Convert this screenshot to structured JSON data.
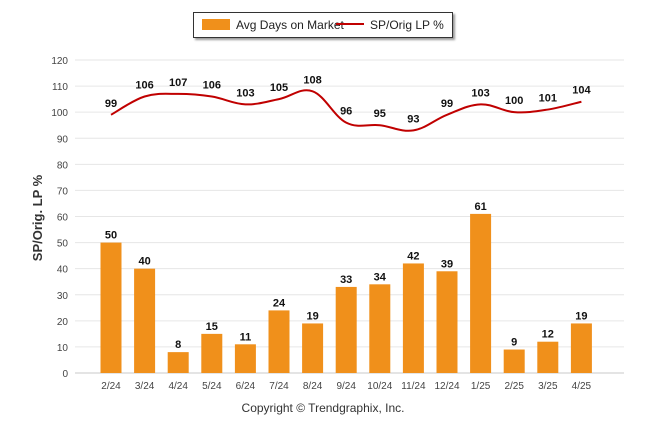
{
  "chart_data": {
    "type": "bar",
    "categories": [
      "2/24",
      "3/24",
      "4/24",
      "5/24",
      "6/24",
      "7/24",
      "8/24",
      "9/24",
      "10/24",
      "11/24",
      "12/24",
      "1/25",
      "2/25",
      "3/25",
      "4/25"
    ],
    "series": [
      {
        "name": "Avg Days on Market",
        "type": "bar",
        "color": "#f0901b",
        "values": [
          50,
          40,
          8,
          15,
          11,
          24,
          19,
          33,
          34,
          42,
          39,
          61,
          9,
          12,
          19
        ]
      },
      {
        "name": "SP/Orig LP %",
        "type": "line",
        "color": "#c00000",
        "values": [
          99,
          106,
          107,
          106,
          103,
          105,
          108,
          96,
          95,
          93,
          99,
          103,
          100,
          101,
          104
        ]
      }
    ],
    "ylabel": "SP/Orig. LP %",
    "xlabel": "",
    "ylim": [
      0,
      120
    ],
    "yticks": [
      0,
      10,
      20,
      30,
      40,
      50,
      60,
      70,
      80,
      90,
      100,
      110,
      120
    ],
    "grid": true,
    "legend_position": "top-center"
  },
  "footer": {
    "copyright": "Copyright © Trendgraphix, Inc."
  }
}
